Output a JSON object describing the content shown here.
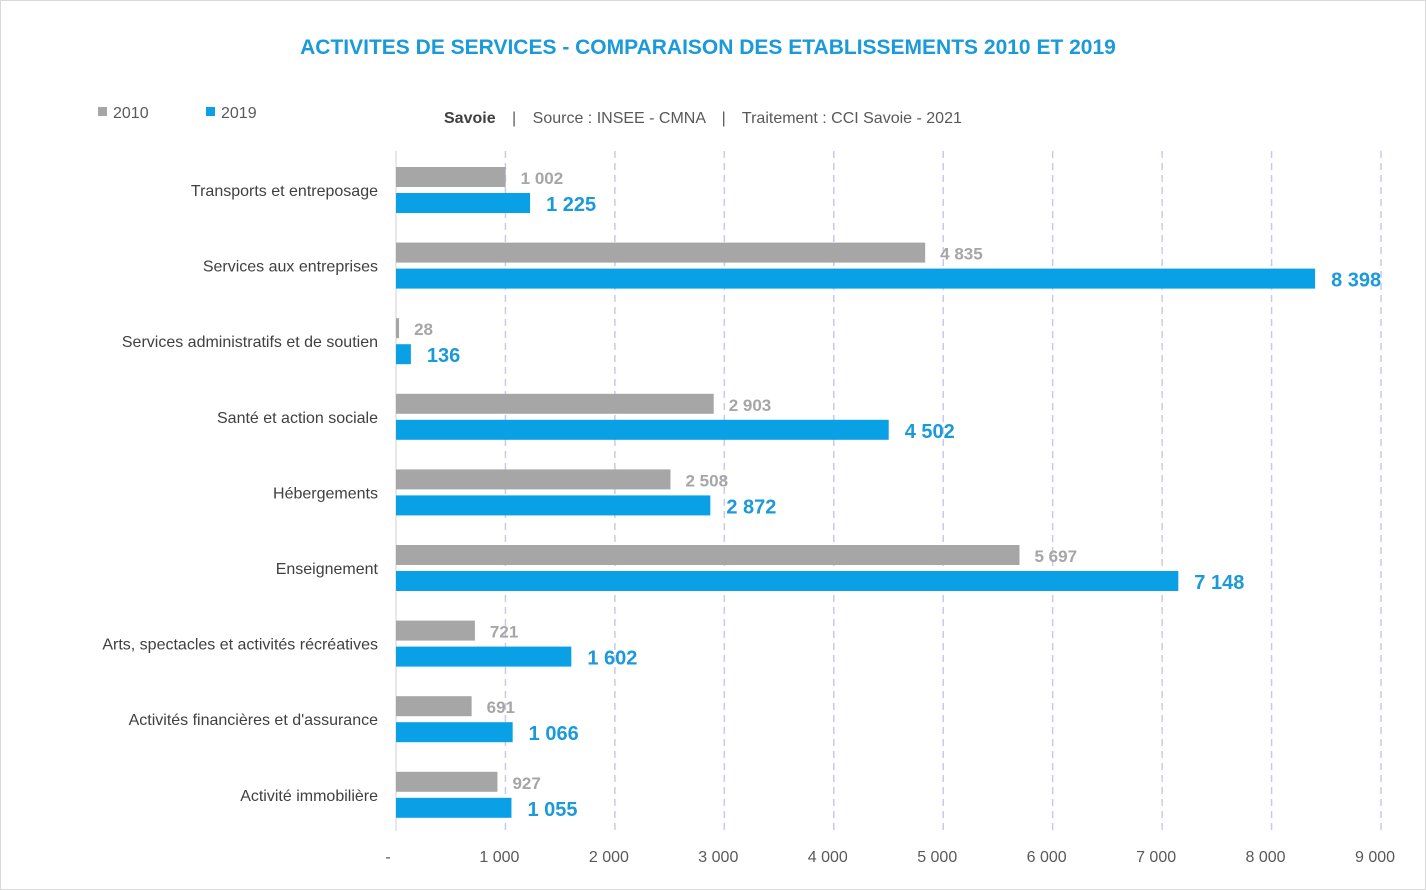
{
  "chart_data": {
    "type": "bar",
    "orientation": "horizontal",
    "title": "ACTIVITES DE SERVICES - COMPARAISON DES ETABLISSEMENTS 2010 ET 2019",
    "subtitle": {
      "region": "Savoie",
      "separator": "|",
      "source": "Source : INSEE - CMNA",
      "processing": "Traitement : CCI Savoie - 2021"
    },
    "legend_position": "top-left",
    "categories": [
      "Transports et entreposage",
      "Services aux entreprises",
      "Services administratifs et de soutien",
      "Santé et action sociale",
      "Hébergements",
      "Enseignement",
      "Arts, spectacles et activités récréatives",
      "Activités financières et d'assurance",
      "Activité immobilière"
    ],
    "series": [
      {
        "name": "2010",
        "color": "#a6a6a6",
        "values": [
          1002,
          4835,
          28,
          2903,
          2508,
          5697,
          721,
          691,
          927
        ],
        "labels": [
          "1 002",
          "4 835",
          "28",
          "2 903",
          "2 508",
          "5 697",
          "721",
          "691",
          "927"
        ]
      },
      {
        "name": "2019",
        "color": "#0aa0e6",
        "values": [
          1225,
          8398,
          136,
          4502,
          2872,
          7148,
          1602,
          1066,
          1055
        ],
        "labels": [
          "1 225",
          "8 398",
          "136",
          "4 502",
          "2 872",
          "7 148",
          "1 602",
          "1 066",
          "1 055"
        ]
      }
    ],
    "xlim": [
      0,
      9000
    ],
    "xticks": [
      0,
      1000,
      2000,
      3000,
      4000,
      5000,
      6000,
      7000,
      8000,
      9000
    ],
    "xtick_labels": [
      "-",
      "1 000",
      "2 000",
      "3 000",
      "4 000",
      "5 000",
      "6 000",
      "7 000",
      "8 000",
      "9 000"
    ],
    "grid": true,
    "xlabel": "",
    "ylabel": ""
  }
}
